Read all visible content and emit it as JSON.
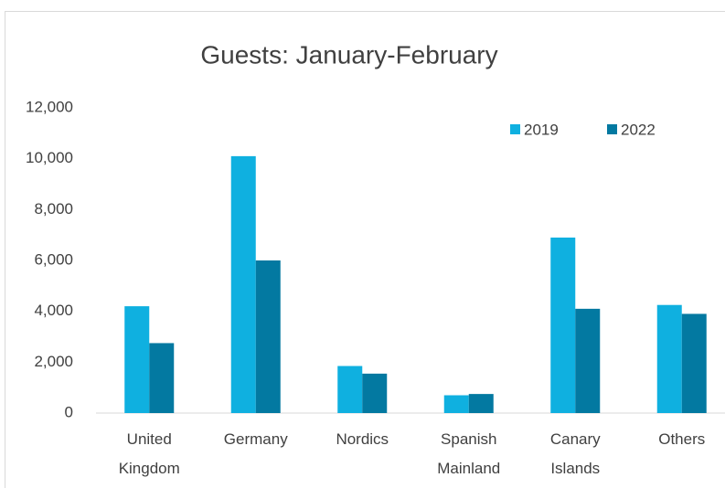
{
  "chart_data": {
    "type": "bar",
    "title": "Guests: January-February",
    "categories": [
      "United Kingdom",
      "Germany",
      "Nordics",
      "Spanish Mainland",
      "Canary Islands",
      "Others"
    ],
    "series": [
      {
        "name": "2019",
        "color": "#0fb0e0",
        "values": [
          4200,
          10100,
          1850,
          700,
          6900,
          4250
        ]
      },
      {
        "name": "2022",
        "color": "#0379a1",
        "values": [
          2750,
          6000,
          1550,
          750,
          4100,
          3900
        ]
      }
    ],
    "ylim": [
      0,
      12000
    ],
    "yticks": [
      0,
      {
        "value": 2000,
        "label": "2,000"
      },
      {
        "value": 4000,
        "label": "4,000"
      },
      {
        "value": 6000,
        "label": "6,000"
      },
      {
        "value": 8000,
        "label": "8,000"
      },
      {
        "value": 10000,
        "label": "10,000"
      },
      {
        "value": 12000,
        "label": "12,000"
      }
    ],
    "grid": false,
    "legend": "top-right"
  }
}
